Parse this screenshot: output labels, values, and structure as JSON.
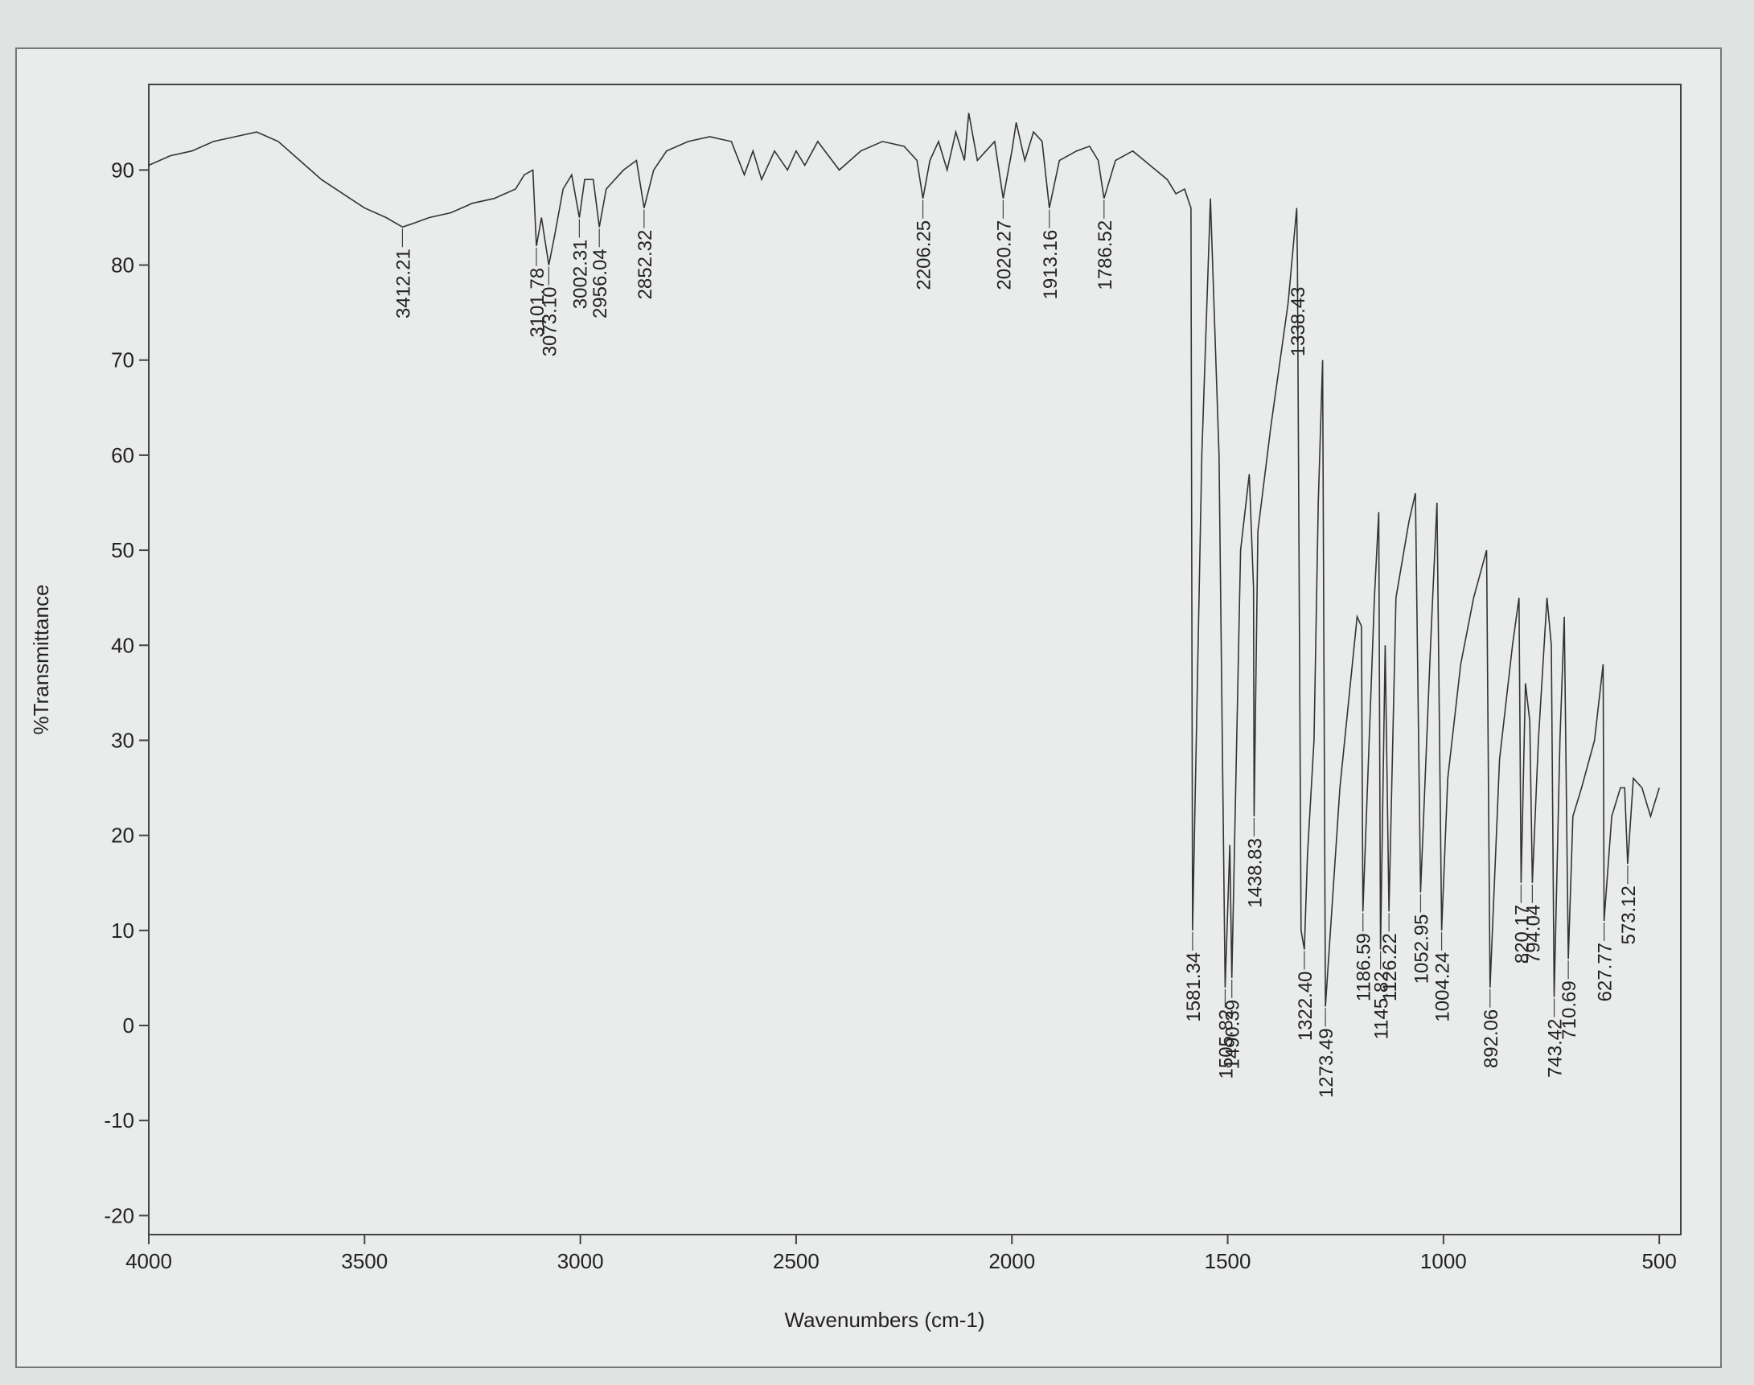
{
  "chart_data": {
    "type": "line",
    "x_label": "Wavenumbers (cm-1)",
    "y_label": "%Transmittance",
    "xlim": [
      4000,
      450
    ],
    "ylim": [
      -22,
      99
    ],
    "xticks": [
      4000,
      3500,
      3000,
      2500,
      2000,
      1500,
      1000,
      500
    ],
    "yticks": [
      -20,
      -10,
      0,
      10,
      20,
      30,
      40,
      50,
      60,
      70,
      80,
      90
    ],
    "color": "#333333",
    "x": [
      4000,
      3950,
      3900,
      3850,
      3800,
      3750,
      3700,
      3650,
      3600,
      3550,
      3500,
      3450,
      3412,
      3380,
      3350,
      3300,
      3250,
      3200,
      3150,
      3130,
      3110,
      3101.78,
      3090,
      3073.1,
      3060,
      3040,
      3020,
      3002.31,
      2990,
      2970,
      2956.04,
      2940,
      2900,
      2870,
      2852.32,
      2830,
      2800,
      2750,
      2700,
      2650,
      2620,
      2600,
      2580,
      2550,
      2520,
      2500,
      2480,
      2450,
      2400,
      2350,
      2300,
      2250,
      2220,
      2206.25,
      2190,
      2170,
      2150,
      2130,
      2110,
      2100,
      2080,
      2060,
      2040,
      2020.27,
      2000,
      1990,
      1970,
      1950,
      1930,
      1913.16,
      1890,
      1850,
      1820,
      1800,
      1786.52,
      1760,
      1720,
      1680,
      1640,
      1620,
      1600,
      1585,
      1581.34,
      1560,
      1540,
      1520,
      1505.82,
      1495,
      1490.39,
      1470,
      1450,
      1440,
      1438.83,
      1430,
      1400,
      1360,
      1340,
      1338.43,
      1330,
      1322.4,
      1315,
      1300,
      1290,
      1280,
      1273.49,
      1240,
      1200,
      1190,
      1186.59,
      1160,
      1150,
      1145.82,
      1135,
      1126.22,
      1110,
      1080,
      1065,
      1052.95,
      1030,
      1015,
      1004.24,
      990,
      960,
      930,
      900,
      892.06,
      870,
      840,
      825,
      820.17,
      810,
      800,
      794.04,
      780,
      760,
      750,
      743.42,
      730,
      720,
      710.69,
      700,
      680,
      650,
      630,
      627.77,
      610,
      590,
      580,
      573.12,
      560,
      540,
      520,
      500
    ],
    "values": [
      90.5,
      91.5,
      92,
      93,
      93.5,
      94,
      93,
      91,
      89,
      87.5,
      86,
      85,
      84,
      84.5,
      85,
      85.5,
      86.5,
      87,
      88,
      89.5,
      90,
      82,
      85,
      80,
      83,
      88,
      89.5,
      85,
      89,
      89,
      84,
      88,
      90,
      91,
      86,
      90,
      92,
      93,
      93.5,
      93,
      89.5,
      92,
      89,
      92,
      90,
      92,
      90.5,
      93,
      90,
      92,
      93,
      92.5,
      91,
      87,
      91,
      93,
      90,
      94,
      91,
      96,
      91,
      92,
      93,
      87,
      92,
      95,
      91,
      94,
      93,
      86,
      91,
      92,
      92.5,
      91,
      87,
      91,
      92,
      90.5,
      89,
      87.5,
      88,
      86,
      10,
      60,
      87,
      60,
      4,
      19,
      5,
      50,
      58,
      46,
      22,
      52,
      63,
      76,
      86,
      80,
      10,
      8,
      18,
      30,
      55,
      70,
      2,
      25,
      43,
      42,
      12,
      45,
      54,
      8,
      40,
      12,
      45,
      53,
      56,
      14,
      40,
      55,
      10,
      26,
      38,
      45,
      50,
      4,
      28,
      40,
      45,
      15,
      36,
      32,
      15,
      30,
      45,
      40,
      3,
      30,
      43,
      7,
      22,
      25,
      30,
      38,
      11,
      22,
      25,
      25,
      17,
      26,
      25,
      22,
      25
    ],
    "peaks": [
      3412.21,
      3101.78,
      {
        "value": 3073.1,
        "label": "3073.10"
      },
      3002.31,
      2956.04,
      2852.32,
      2206.25,
      2020.27,
      1913.16,
      1786.52,
      1581.34,
      1505.82,
      1490.39,
      1438.83,
      1338.43,
      {
        "value": 1322.4,
        "label": "1322.40"
      },
      1273.49,
      1186.59,
      1145.82,
      1126.22,
      1052.95,
      1004.24,
      892.06,
      820.17,
      794.04,
      743.42,
      710.69,
      627.77,
      573.12
    ]
  }
}
